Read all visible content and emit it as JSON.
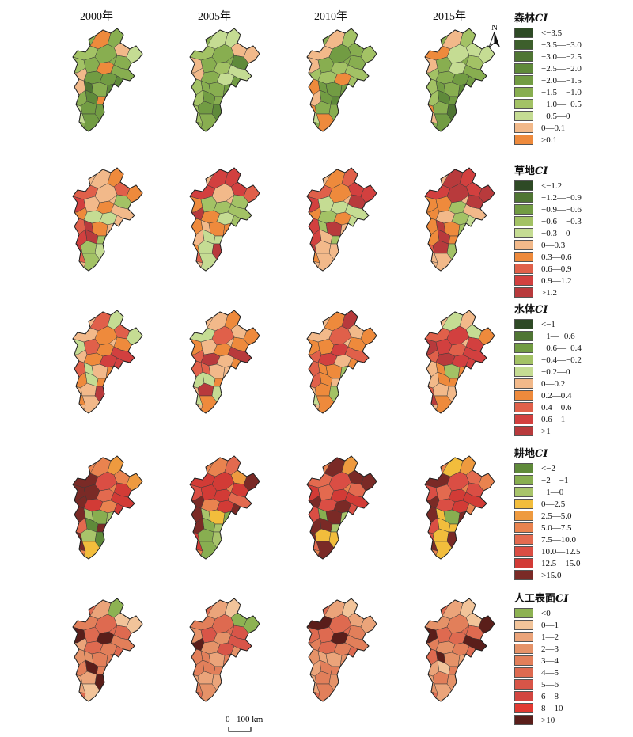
{
  "years": [
    "2000年",
    "2005年",
    "2010年",
    "2015年"
  ],
  "north_label": "N",
  "scalebar": {
    "zero": "0",
    "label": "100 km"
  },
  "legends": [
    {
      "title": "森林",
      "ci": "CI",
      "items": [
        {
          "label": "<−3.5",
          "color": "#2e4a25"
        },
        {
          "label": "−3.5—−3.0",
          "color": "#3d5f2c"
        },
        {
          "label": "−3.0—−2.5",
          "color": "#4f7533"
        },
        {
          "label": "−2.5—−2.0",
          "color": "#5f8a3a"
        },
        {
          "label": "−2.0—−1.5",
          "color": "#729c43"
        },
        {
          "label": "−1.5—−1.0",
          "color": "#88ae50"
        },
        {
          "label": "−1.0—−0.5",
          "color": "#a3c265"
        },
        {
          "label": "−0.5—0",
          "color": "#c5dc93"
        },
        {
          "label": "0—0.1",
          "color": "#f2b98a"
        },
        {
          "label": ">0.1",
          "color": "#ee8a3c"
        }
      ],
      "maps": [
        {
          "north": 0.7,
          "center": 0.55,
          "south": 0.4,
          "west": 0.75,
          "hot": 0.2
        },
        {
          "north": 0.72,
          "center": 0.55,
          "south": 0.4,
          "west": 0.78,
          "hot": 0.3
        },
        {
          "north": 0.7,
          "center": 0.55,
          "south": 0.42,
          "west": 0.78,
          "hot": 0.25
        },
        {
          "north": 0.72,
          "center": 0.58,
          "south": 0.42,
          "west": 0.8,
          "hot": 0.3
        }
      ]
    },
    {
      "title": "草地",
      "ci": "CI",
      "items": [
        {
          "label": "<−1.2",
          "color": "#2e4a25"
        },
        {
          "label": "−1.2—−0.9",
          "color": "#4f7533"
        },
        {
          "label": "−0.9—−0.6",
          "color": "#729c43"
        },
        {
          "label": "−0.6—−0.3",
          "color": "#a3c265"
        },
        {
          "label": "−0.3—0",
          "color": "#c5dc93"
        },
        {
          "label": "0—0.3",
          "color": "#f2b98a"
        },
        {
          "label": "0.3—0.6",
          "color": "#ee8a3c"
        },
        {
          "label": "0.6—0.9",
          "color": "#e0604a"
        },
        {
          "label": "0.9—1.2",
          "color": "#d2403f"
        },
        {
          "label": ">1.2",
          "color": "#b83a3c"
        }
      ],
      "maps": [
        {
          "north": 0.7,
          "center": 0.5,
          "south": 0.45,
          "west": 0.7,
          "hot": 0.35
        },
        {
          "north": 0.72,
          "center": 0.5,
          "south": 0.45,
          "west": 0.72,
          "hot": 0.35
        },
        {
          "north": 0.7,
          "center": 0.52,
          "south": 0.45,
          "west": 0.72,
          "hot": 0.38
        },
        {
          "north": 0.72,
          "center": 0.52,
          "south": 0.45,
          "west": 0.72,
          "hot": 0.4
        }
      ]
    },
    {
      "title": "水体",
      "ci": "CI",
      "items": [
        {
          "label": "<−1",
          "color": "#2e4a25"
        },
        {
          "label": "−1—−0.6",
          "color": "#4f7533"
        },
        {
          "label": "−0.6—−0.4",
          "color": "#729c43"
        },
        {
          "label": "−0.4—−0.2",
          "color": "#a3c265"
        },
        {
          "label": "−0.2—0",
          "color": "#c5dc93"
        },
        {
          "label": "0—0.2",
          "color": "#f2b98a"
        },
        {
          "label": "0.2—0.4",
          "color": "#ee8a3c"
        },
        {
          "label": "0.4—0.6",
          "color": "#e0604a"
        },
        {
          "label": "0.6—1",
          "color": "#d2403f"
        },
        {
          "label": ">1",
          "color": "#b83a3c"
        }
      ],
      "maps": [
        {
          "north": 0.55,
          "center": 0.7,
          "south": 0.55,
          "west": 0.6,
          "hot": 0.3
        },
        {
          "north": 0.55,
          "center": 0.72,
          "south": 0.55,
          "west": 0.6,
          "hot": 0.32
        },
        {
          "north": 0.55,
          "center": 0.7,
          "south": 0.55,
          "west": 0.6,
          "hot": 0.3
        },
        {
          "north": 0.55,
          "center": 0.72,
          "south": 0.55,
          "west": 0.6,
          "hot": 0.34
        }
      ]
    },
    {
      "title": "耕地",
      "ci": "CI",
      "items": [
        {
          "label": "<−2",
          "color": "#5f8a3a"
        },
        {
          "label": "−2—−1",
          "color": "#88ae50"
        },
        {
          "label": "−1—0",
          "color": "#a8c46a"
        },
        {
          "label": "0—2.5",
          "color": "#f2bd3c"
        },
        {
          "label": "2.5—5.0",
          "color": "#ee9a3f"
        },
        {
          "label": "5.0—7.5",
          "color": "#e9834f"
        },
        {
          "label": "7.5—10.0",
          "color": "#e36a4f"
        },
        {
          "label": "10.0—12.5",
          "color": "#da4e44"
        },
        {
          "label": "12.5—15.0",
          "color": "#d23b36"
        },
        {
          "label": ">15.0",
          "color": "#7a2a26"
        }
      ],
      "maps": [
        {
          "north": 0.5,
          "center": 0.7,
          "south": 0.2,
          "west": 0.8,
          "hot": 0.4
        },
        {
          "north": 0.5,
          "center": 0.72,
          "south": 0.2,
          "west": 0.82,
          "hot": 0.42
        },
        {
          "north": 0.5,
          "center": 0.72,
          "south": 0.22,
          "west": 0.82,
          "hot": 0.42
        },
        {
          "north": 0.52,
          "center": 0.74,
          "south": 0.22,
          "west": 0.84,
          "hot": 0.45
        }
      ]
    },
    {
      "title": "人工表面",
      "ci": "CI",
      "items": [
        {
          "label": "<0",
          "color": "#8db252"
        },
        {
          "label": "0—1",
          "color": "#f2c49a"
        },
        {
          "label": "1—2",
          "color": "#eba47a"
        },
        {
          "label": "2—3",
          "color": "#e59268"
        },
        {
          "label": "3—4",
          "color": "#e27f5a"
        },
        {
          "label": "4—5",
          "color": "#de6a50"
        },
        {
          "label": "5—6",
          "color": "#d85548"
        },
        {
          "label": "6—8",
          "color": "#d24540"
        },
        {
          "label": "8—10",
          "color": "#e23a32"
        },
        {
          "label": ">10",
          "color": "#5a1e1a"
        }
      ],
      "maps": [
        {
          "north": 0.15,
          "center": 0.45,
          "south": 0.3,
          "west": 0.35,
          "hot": 0.3
        },
        {
          "north": 0.15,
          "center": 0.48,
          "south": 0.32,
          "west": 0.35,
          "hot": 0.32
        },
        {
          "north": 0.15,
          "center": 0.48,
          "south": 0.32,
          "west": 0.35,
          "hot": 0.32
        },
        {
          "north": 0.15,
          "center": 0.5,
          "south": 0.34,
          "west": 0.36,
          "hot": 0.34
        }
      ]
    }
  ]
}
